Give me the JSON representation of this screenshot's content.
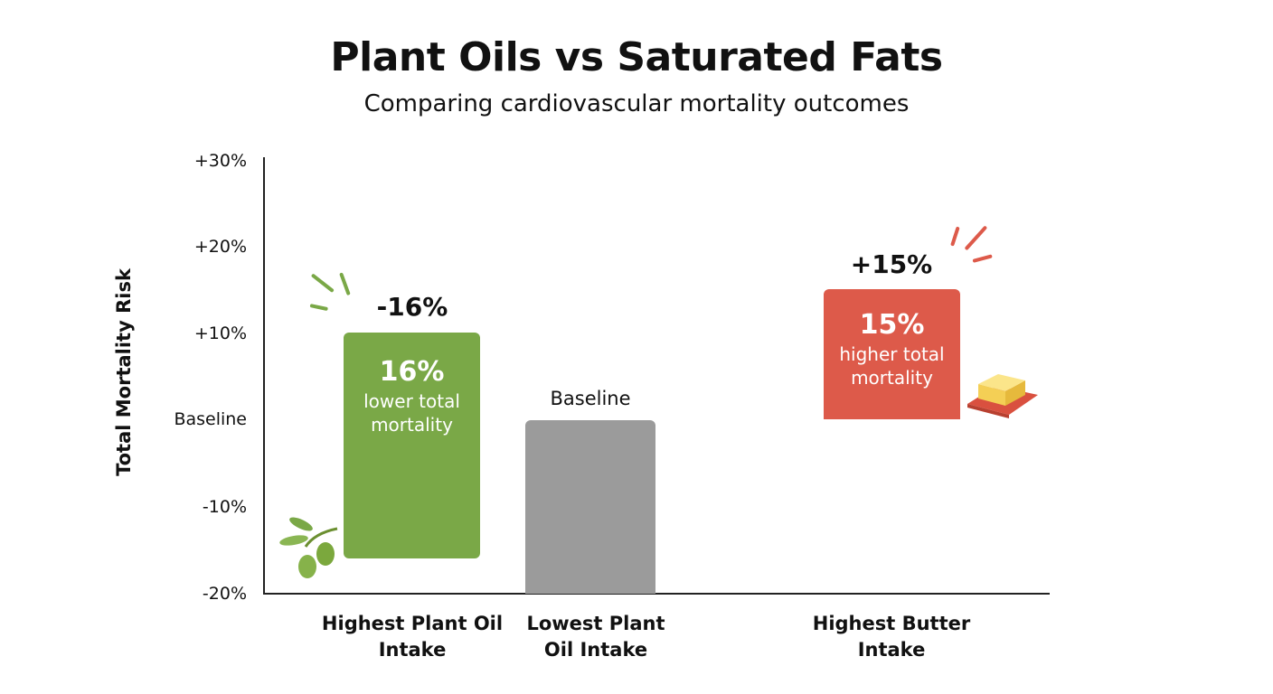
{
  "chart_data": {
    "type": "bar",
    "title": "Plant Oils vs Saturated Fats",
    "subtitle": "Comparing cardiovascular mortality outcomes",
    "ylabel": "Total Mortality Risk",
    "xlabel": "",
    "yticks": [
      "+30%",
      "+20%",
      "+10%",
      "Baseline",
      "-10%",
      "-20%"
    ],
    "ylim": [
      -20,
      30
    ],
    "grid": false,
    "categories": [
      "Highest Plant Oil Intake",
      "Lowest Plant Oil Intake",
      "Highest Butter Intake"
    ],
    "values": [
      -16,
      0,
      15
    ],
    "value_labels": [
      "-16%",
      "Baseline",
      "+15%"
    ],
    "bars": [
      {
        "big": "16%",
        "desc": "lower total mortality",
        "color": "#7aa847",
        "icon": "olive-branch-icon"
      },
      {
        "big": "",
        "desc": "",
        "color": "#9b9b9b"
      },
      {
        "big": "15%",
        "desc": "higher total mortality",
        "color": "#dd5a4a",
        "icon": "butter-icon"
      }
    ]
  }
}
